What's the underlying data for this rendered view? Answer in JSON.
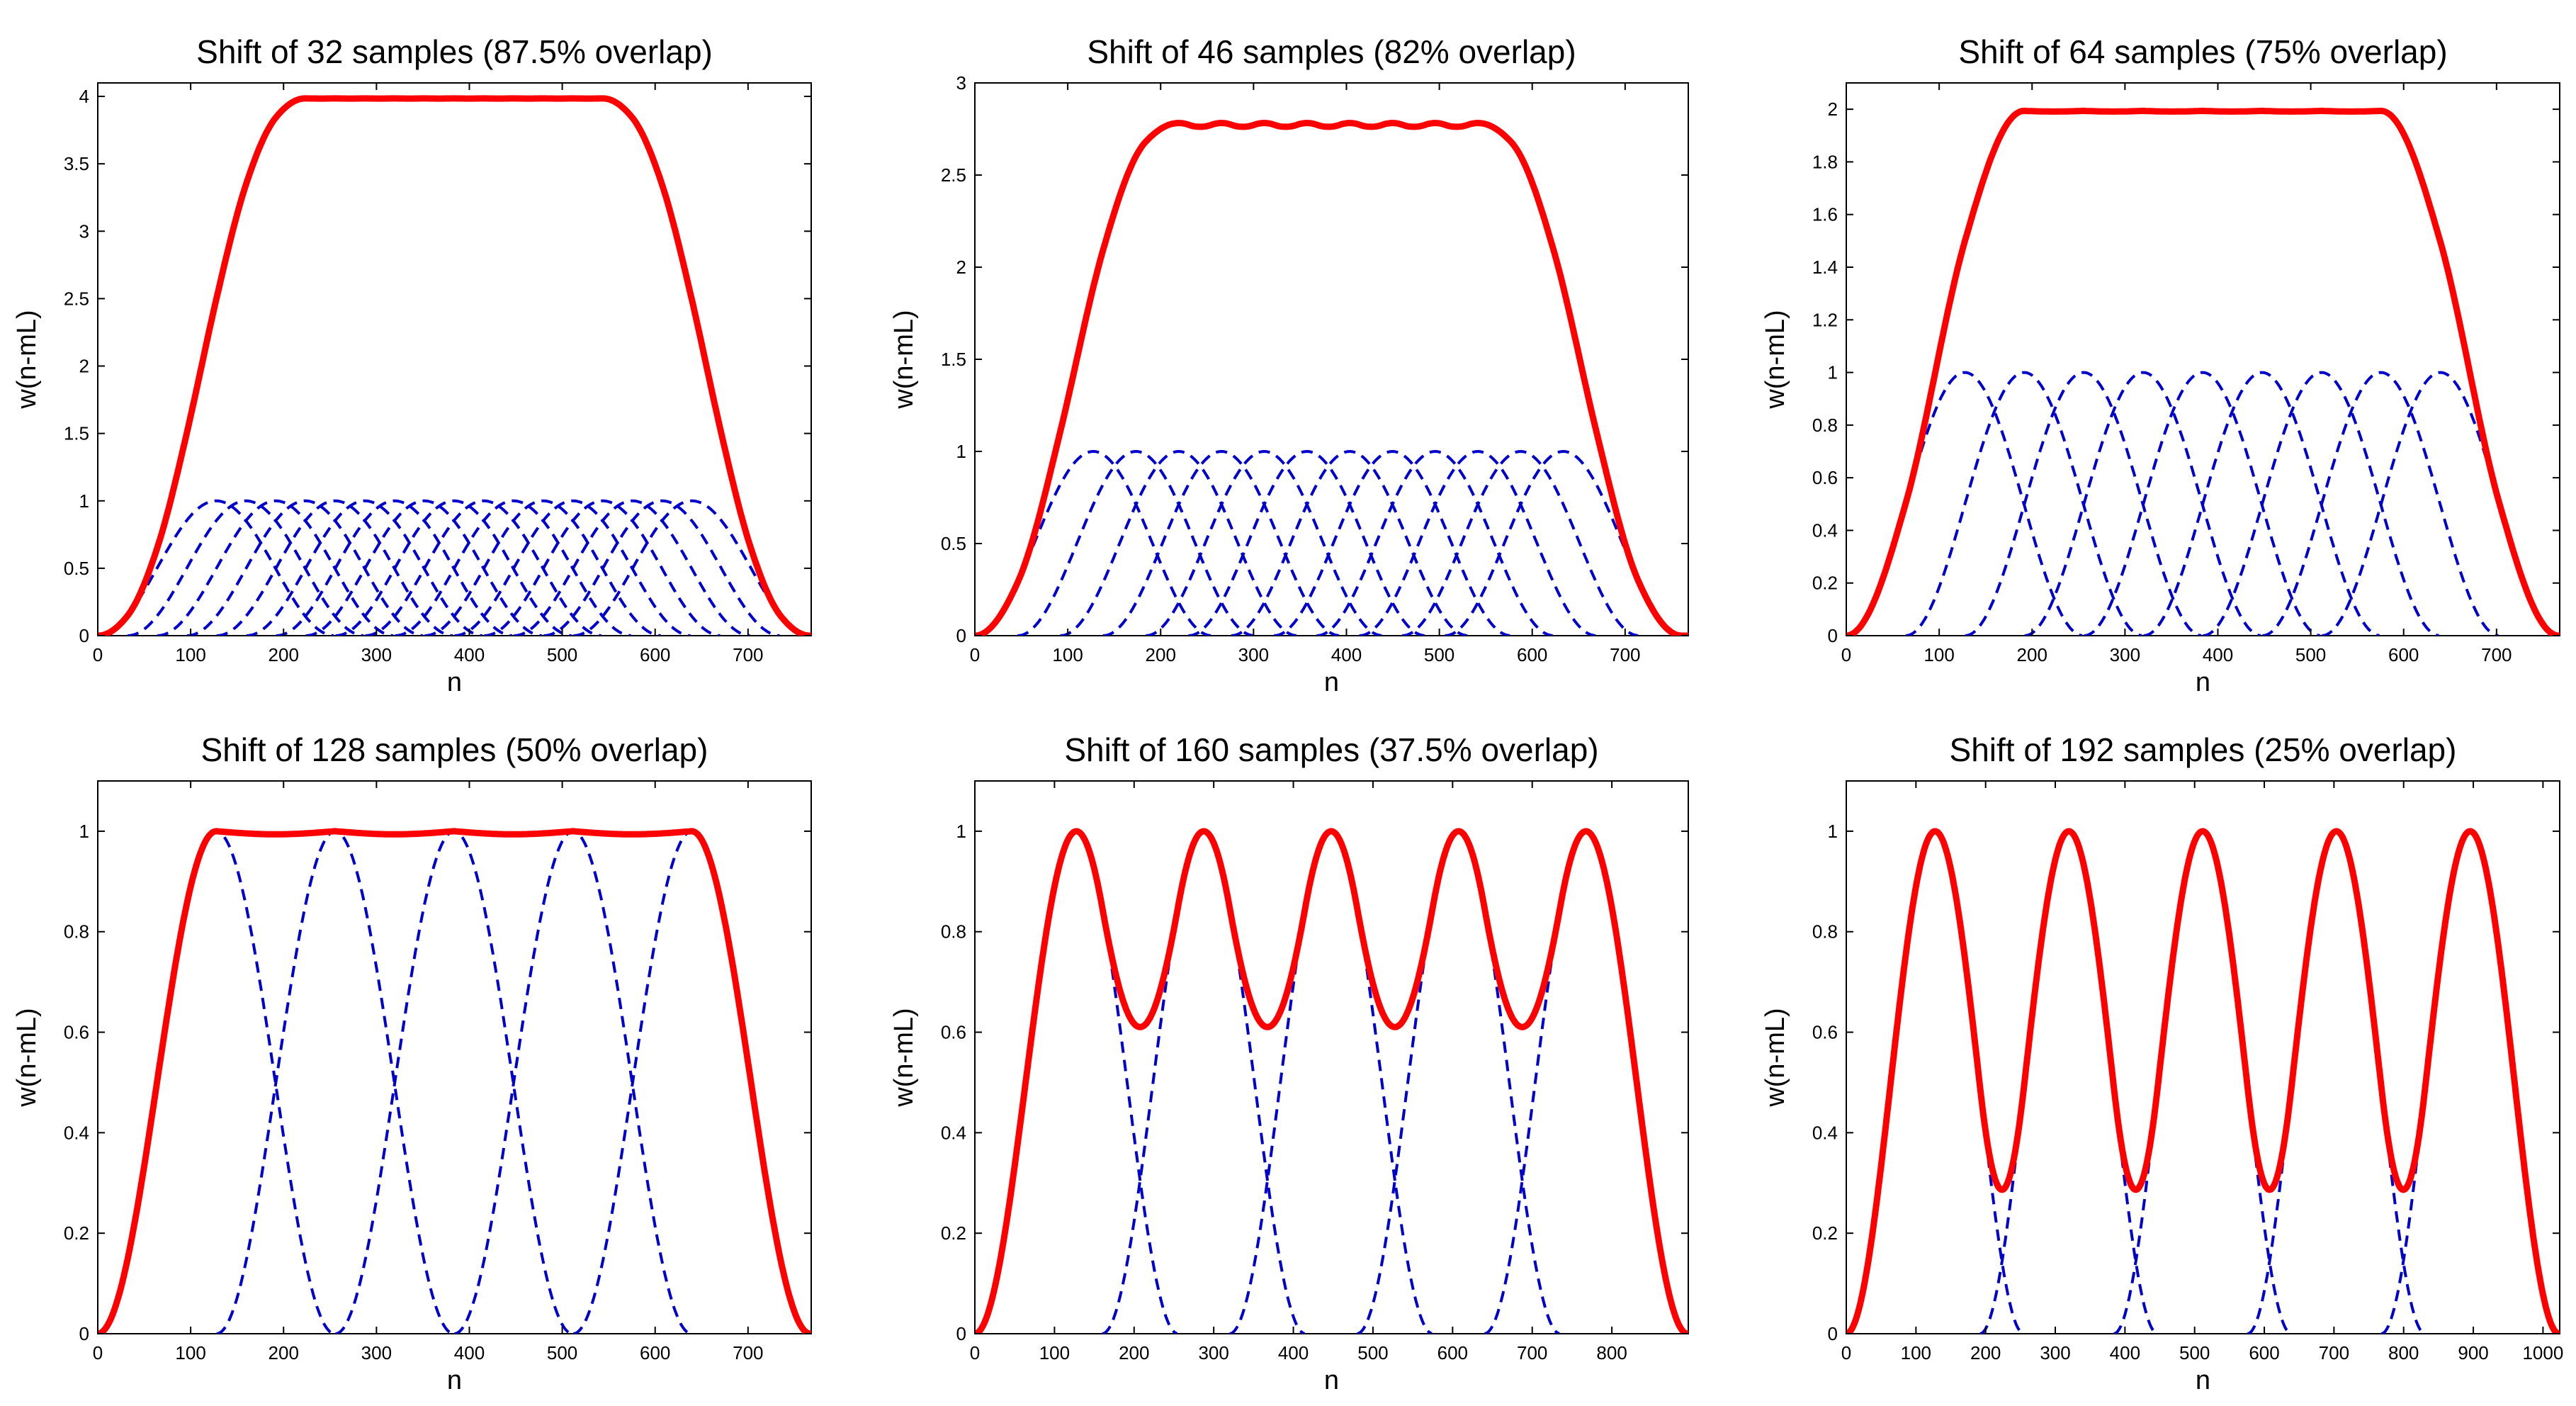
{
  "chart_data": [
    {
      "type": "line",
      "title": "Shift of 32 samples (87.5% overlap)",
      "xlabel": "n",
      "ylabel": "w(n-mL)",
      "xlim": [
        0,
        768
      ],
      "ylim": [
        0,
        4.1
      ],
      "xticks": [
        0,
        100,
        200,
        300,
        400,
        500,
        600,
        700
      ],
      "yticks": [
        0,
        0.5,
        1,
        1.5,
        2,
        2.5,
        3,
        3.5,
        4
      ],
      "ytick_labels": [
        "0",
        "0.5",
        "1",
        "1.5",
        "2",
        "2.5",
        "3",
        "3.5",
        "4"
      ],
      "grid": false,
      "window_length": 256,
      "hop": 32,
      "window_count": 17,
      "series": [
        {
          "role": "sum",
          "color": "#ff0000",
          "style": "solid"
        },
        {
          "role": "window",
          "color": "#0000cc",
          "style": "dashed"
        }
      ]
    },
    {
      "type": "line",
      "title": "Shift of 46 samples (82% overlap)",
      "xlabel": "n",
      "ylabel": "w(n-mL)",
      "xlim": [
        0,
        768
      ],
      "ylim": [
        0,
        3
      ],
      "xticks": [
        0,
        100,
        200,
        300,
        400,
        500,
        600,
        700
      ],
      "yticks": [
        0,
        0.5,
        1,
        1.5,
        2,
        2.5,
        3
      ],
      "ytick_labels": [
        "0",
        "0.5",
        "1",
        "1.5",
        "2",
        "2.5",
        "3"
      ],
      "grid": false,
      "window_length": 256,
      "hop": 46,
      "window_count": 12,
      "series": [
        {
          "role": "sum",
          "color": "#ff0000",
          "style": "solid"
        },
        {
          "role": "window",
          "color": "#0000cc",
          "style": "dashed"
        }
      ]
    },
    {
      "type": "line",
      "title": "Shift of 64 samples (75% overlap)",
      "xlabel": "n",
      "ylabel": "w(n-mL)",
      "xlim": [
        0,
        768
      ],
      "ylim": [
        0,
        2.1
      ],
      "xticks": [
        0,
        100,
        200,
        300,
        400,
        500,
        600,
        700
      ],
      "yticks": [
        0,
        0.2,
        0.4,
        0.6,
        0.8,
        1,
        1.2,
        1.4,
        1.6,
        1.8,
        2
      ],
      "ytick_labels": [
        "0",
        "0.2",
        "0.4",
        "0.6",
        "0.8",
        "1",
        "1.2",
        "1.4",
        "1.6",
        "1.8",
        "2"
      ],
      "grid": false,
      "window_length": 256,
      "hop": 64,
      "window_count": 9,
      "series": [
        {
          "role": "sum",
          "color": "#ff0000",
          "style": "solid"
        },
        {
          "role": "window",
          "color": "#0000cc",
          "style": "dashed"
        }
      ]
    },
    {
      "type": "line",
      "title": "Shift of 128 samples (50% overlap)",
      "xlabel": "n",
      "ylabel": "w(n-mL)",
      "xlim": [
        0,
        768
      ],
      "ylim": [
        0,
        1.1
      ],
      "xticks": [
        0,
        100,
        200,
        300,
        400,
        500,
        600,
        700
      ],
      "yticks": [
        0,
        0.2,
        0.4,
        0.6,
        0.8,
        1
      ],
      "ytick_labels": [
        "0",
        "0.2",
        "0.4",
        "0.6",
        "0.8",
        "1"
      ],
      "grid": false,
      "window_length": 256,
      "hop": 128,
      "window_count": 5,
      "series": [
        {
          "role": "sum",
          "color": "#ff0000",
          "style": "solid"
        },
        {
          "role": "window",
          "color": "#0000cc",
          "style": "dashed"
        }
      ]
    },
    {
      "type": "line",
      "title": "Shift of 160 samples (37.5% overlap)",
      "xlabel": "n",
      "ylabel": "w(n-mL)",
      "xlim": [
        0,
        896
      ],
      "ylim": [
        0,
        1.1
      ],
      "xticks": [
        0,
        100,
        200,
        300,
        400,
        500,
        600,
        700,
        800
      ],
      "yticks": [
        0,
        0.2,
        0.4,
        0.6,
        0.8,
        1
      ],
      "ytick_labels": [
        "0",
        "0.2",
        "0.4",
        "0.6",
        "0.8",
        "1"
      ],
      "grid": false,
      "window_length": 256,
      "hop": 160,
      "window_count": 5,
      "series": [
        {
          "role": "sum",
          "color": "#ff0000",
          "style": "solid"
        },
        {
          "role": "window",
          "color": "#0000cc",
          "style": "dashed"
        }
      ]
    },
    {
      "type": "line",
      "title": "Shift of 192 samples (25% overlap)",
      "xlabel": "n",
      "ylabel": "w(n-mL)",
      "xlim": [
        0,
        1024
      ],
      "ylim": [
        0,
        1.1
      ],
      "xticks": [
        0,
        100,
        200,
        300,
        400,
        500,
        600,
        700,
        800,
        900,
        1000
      ],
      "yticks": [
        0,
        0.2,
        0.4,
        0.6,
        0.8,
        1
      ],
      "ytick_labels": [
        "0",
        "0.2",
        "0.4",
        "0.6",
        "0.8",
        "1"
      ],
      "grid": false,
      "window_length": 256,
      "hop": 192,
      "window_count": 5,
      "series": [
        {
          "role": "sum",
          "color": "#ff0000",
          "style": "solid"
        },
        {
          "role": "window",
          "color": "#0000cc",
          "style": "dashed"
        }
      ]
    }
  ]
}
